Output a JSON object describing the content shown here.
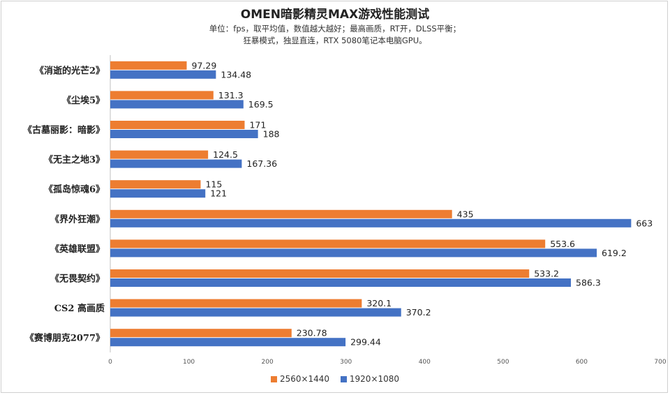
{
  "title": "OMEN暗影精灵MAX游戏性能测试",
  "subtitle_line1": "单位：fps，取平均值，数值越大越好；最高画质，RT开，DLSS平衡；",
  "subtitle_line2": "狂暴模式，独显直连，RTX 5080笔记本电脑GPU。",
  "colors": {
    "series1": "#ED7D31",
    "series2": "#4472C4"
  },
  "chart_data": {
    "type": "bar",
    "orientation": "horizontal",
    "title": "OMEN暗影精灵MAX游戏性能测试",
    "categories": [
      "《消逝的光芒2》",
      "《尘埃5》",
      "《古墓丽影：暗影》",
      "《无主之地3》",
      "《孤岛惊魂6》",
      "《界外狂潮》",
      "《英雄联盟》",
      "《无畏契约》",
      "CS2 高画质",
      "《赛博朋克2077》"
    ],
    "series": [
      {
        "name": "2560×1440",
        "values": [
          97.29,
          131.3,
          171,
          124.5,
          115,
          435,
          553.6,
          533.2,
          320.1,
          230.78
        ],
        "labels": [
          "97.29",
          "131.3",
          "171",
          "124.5",
          "115",
          "435",
          "553.6",
          "533.2",
          "320.1",
          "230.78"
        ]
      },
      {
        "name": "1920×1080",
        "values": [
          134.48,
          169.5,
          188,
          167.36,
          121,
          663,
          619.2,
          586.3,
          370.2,
          299.44
        ],
        "labels": [
          "134.48",
          "169.5",
          "188",
          "167.36",
          "121",
          "663",
          "619.2",
          "586.3",
          "370.2",
          "299.44"
        ]
      }
    ],
    "xlim": [
      0,
      700
    ],
    "xticks": [
      "0",
      "100",
      "200",
      "300",
      "400",
      "500",
      "600",
      "700"
    ],
    "grid": false,
    "legend_position": "bottom"
  }
}
